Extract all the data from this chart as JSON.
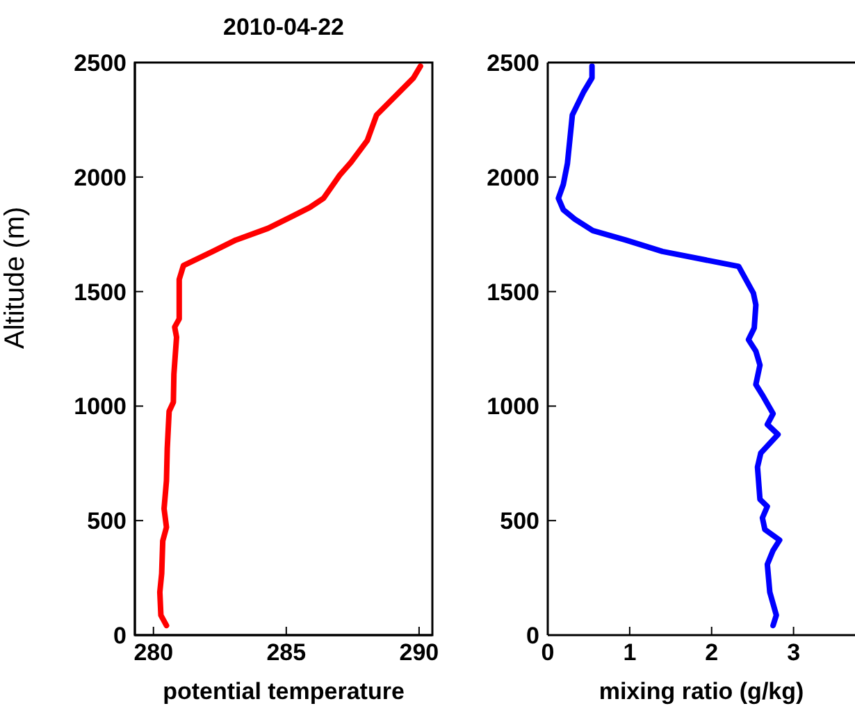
{
  "chart_data": [
    {
      "type": "line",
      "title": "2010-04-22",
      "xlabel": "potential temperature",
      "ylabel": "Altitude (m)",
      "xlim": [
        279.3,
        290.5
      ],
      "xticks": [
        280,
        285,
        290
      ],
      "ylim": [
        0,
        2500
      ],
      "yticks": [
        0,
        500,
        1000,
        1500,
        2000,
        2500
      ],
      "series": [
        {
          "color": "#ff0000",
          "x": [
            280.49,
            280.28,
            280.24,
            280.31,
            280.35,
            280.49,
            280.4,
            280.49,
            280.52,
            280.59,
            280.75,
            280.77,
            280.87,
            280.8,
            280.97,
            280.97,
            281.13,
            282.23,
            283.1,
            284.31,
            285.18,
            285.88,
            286.4,
            287.01,
            287.44,
            288.05,
            288.4,
            289.79,
            290.05
          ],
          "values": [
            42,
            87,
            188,
            269,
            411,
            471,
            552,
            674,
            815,
            977,
            1017,
            1139,
            1301,
            1345,
            1381,
            1553,
            1614,
            1675,
            1725,
            1776,
            1826,
            1867,
            1907,
            2008,
            2065,
            2160,
            2271,
            2433,
            2484
          ]
        }
      ]
    },
    {
      "type": "line",
      "xlabel": "mixing ratio (g/kg)",
      "xlim": [
        0,
        3.75
      ],
      "xticks": [
        0,
        1,
        2,
        3
      ],
      "ylim": [
        0,
        2500
      ],
      "yticks": [
        0,
        500,
        1000,
        1500,
        2000,
        2500
      ],
      "series": [
        {
          "color": "#0000ff",
          "x": [
            2.75,
            2.79,
            2.71,
            2.68,
            2.75,
            2.83,
            2.65,
            2.62,
            2.68,
            2.59,
            2.56,
            2.6,
            2.81,
            2.68,
            2.75,
            2.62,
            2.54,
            2.59,
            2.54,
            2.45,
            2.52,
            2.54,
            2.51,
            2.33,
            1.4,
            0.95,
            0.55,
            0.33,
            0.19,
            0.13,
            0.19,
            0.24,
            0.3,
            0.44,
            0.54,
            0.54
          ],
          "values": [
            42,
            87,
            188,
            309,
            370,
            415,
            461,
            512,
            562,
            593,
            734,
            795,
            876,
            920,
            967,
            1048,
            1094,
            1179,
            1240,
            1290,
            1341,
            1442,
            1493,
            1610,
            1675,
            1725,
            1766,
            1816,
            1857,
            1907,
            1968,
            2059,
            2271,
            2373,
            2433,
            2484
          ]
        }
      ]
    }
  ]
}
